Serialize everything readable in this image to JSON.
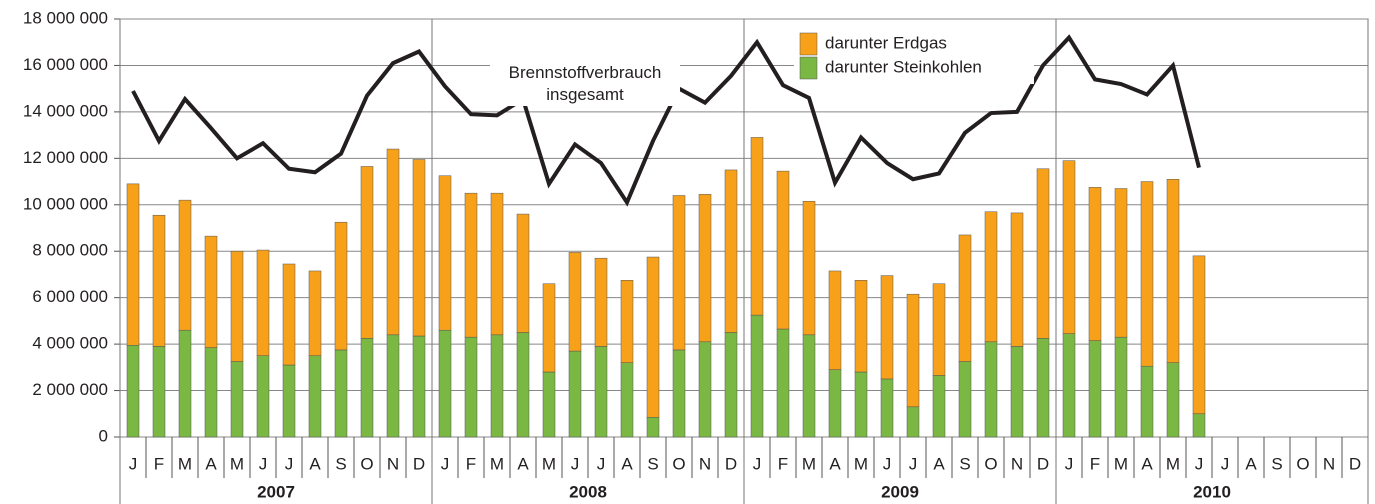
{
  "chart_data": {
    "type": "bar",
    "stacked": true,
    "categories": [
      "J",
      "F",
      "M",
      "A",
      "M",
      "J",
      "J",
      "A",
      "S",
      "O",
      "N",
      "D",
      "J",
      "F",
      "M",
      "A",
      "M",
      "J",
      "J",
      "A",
      "S",
      "O",
      "N",
      "D",
      "J",
      "F",
      "M",
      "A",
      "M",
      "J",
      "J",
      "A",
      "S",
      "O",
      "N",
      "D",
      "J",
      "F",
      "M",
      "A",
      "M",
      "J",
      "J",
      "A",
      "S",
      "O",
      "N",
      "D"
    ],
    "x_groups": [
      "2007",
      "2008",
      "2009",
      "2010"
    ],
    "series": [
      {
        "name": "darunter Erdgas",
        "color": "#f7a11a",
        "values": [
          6950000,
          5650000,
          5600000,
          4800000,
          4750000,
          4550000,
          4350000,
          3650000,
          5500000,
          7400000,
          8000000,
          7600000,
          6650000,
          6200000,
          6100000,
          5100000,
          3800000,
          4250000,
          3800000,
          3550000,
          6900000,
          6650000,
          6350000,
          7000000,
          7650000,
          6800000,
          5750000,
          4250000,
          3950000,
          4450000,
          4850000,
          3950000,
          5450000,
          5600000,
          5750000,
          7300000,
          7450000,
          6600000,
          6400000,
          7950000,
          7900000,
          6800000,
          null,
          null,
          null,
          null,
          null,
          null
        ]
      },
      {
        "name": "darunter Steinkohlen",
        "color": "#7ab843",
        "values": [
          3950000,
          3900000,
          4600000,
          3850000,
          3250000,
          3500000,
          3100000,
          3500000,
          3750000,
          4250000,
          4400000,
          4350000,
          4600000,
          4300000,
          4400000,
          4500000,
          2800000,
          3700000,
          3900000,
          3200000,
          850000,
          3750000,
          4100000,
          4500000,
          5250000,
          4650000,
          4400000,
          2900000,
          2800000,
          2500000,
          1300000,
          2650000,
          3250000,
          4100000,
          3900000,
          4250000,
          4450000,
          4150000,
          4300000,
          3050000,
          3200000,
          1000000,
          null,
          null,
          null,
          null,
          null,
          null
        ]
      },
      {
        "name": "Brennstoffverbrauch insgesamt",
        "type": "line",
        "color": "#231f20",
        "values": [
          14900000,
          12750000,
          14550000,
          13300000,
          12000000,
          12650000,
          11550000,
          11400000,
          12200000,
          14700000,
          16100000,
          16600000,
          15100000,
          13900000,
          13850000,
          14550000,
          10900000,
          12600000,
          11800000,
          10100000,
          12750000,
          15000000,
          14400000,
          15550000,
          17000000,
          15150000,
          14600000,
          10950000,
          12900000,
          11800000,
          11100000,
          11350000,
          13100000,
          13950000,
          14000000,
          16000000,
          17200000,
          15400000,
          15200000,
          14750000,
          16000000,
          11600000,
          null,
          null,
          null,
          null,
          null,
          null
        ]
      }
    ],
    "ylim": [
      0,
      18000000
    ],
    "yticks": [
      0,
      {
        "value": 2000000,
        "label": "2 000 000"
      },
      {
        "value": 4000000,
        "label": "4 000 000"
      },
      {
        "value": 6000000,
        "label": "6 000 000"
      },
      {
        "value": 8000000,
        "label": "8 000 000"
      },
      {
        "value": 10000000,
        "label": "10 000 000"
      },
      {
        "value": 12000000,
        "label": "12 000 000"
      },
      {
        "value": 14000000,
        "label": "14 000 000"
      },
      {
        "value": 16000000,
        "label": "16 000 000"
      },
      {
        "value": 18000000,
        "label": "18 000 000"
      }
    ],
    "grid": true
  }
}
